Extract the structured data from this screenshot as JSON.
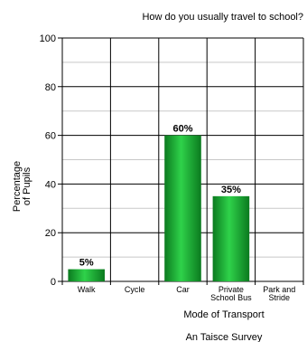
{
  "chart_data": {
    "type": "bar",
    "title": "How do you usually travel to school?",
    "ylabel": [
      "Percentage",
      "of Pupils"
    ],
    "xlabel": "Mode of Transport",
    "footer": "An Taisce Survey",
    "categories": [
      [
        "Walk"
      ],
      [
        "Cycle"
      ],
      [
        "Car"
      ],
      [
        "Private",
        "School Bus"
      ],
      [
        "Park and",
        "Stride"
      ]
    ],
    "values": [
      5,
      0,
      60,
      35,
      0
    ],
    "data_labels": [
      "5%",
      "",
      "60%",
      "35%",
      ""
    ],
    "ylim": [
      0,
      100
    ],
    "yticks": [
      0,
      20,
      40,
      60,
      80,
      100
    ],
    "minor_step": 10,
    "grid": true,
    "bar_color": "#19b032"
  }
}
